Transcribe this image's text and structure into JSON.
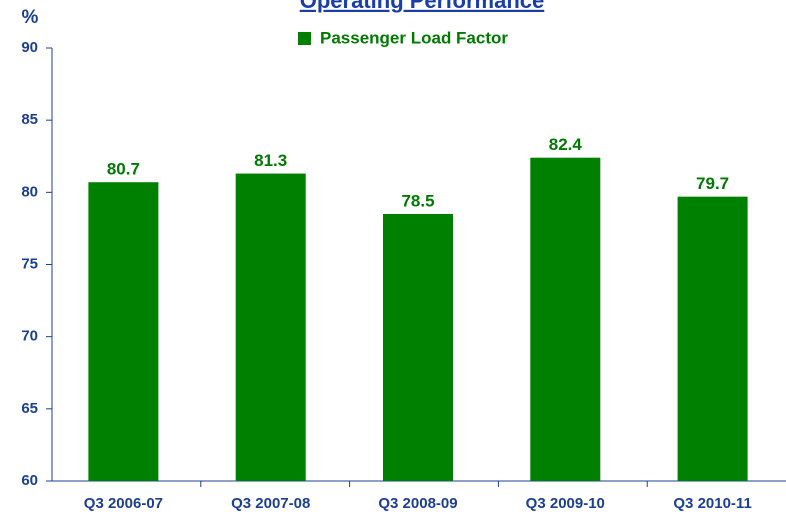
{
  "chart_data": {
    "type": "bar",
    "title": "Operating Performance",
    "y_label": "%",
    "categories": [
      "Q3 2006-07",
      "Q3 2007-08",
      "Q3 2008-09",
      "Q3 2009-10",
      "Q3 2010-11"
    ],
    "series": [
      {
        "name": "Passenger Load Factor",
        "color": "#008000",
        "values": [
          80.7,
          81.3,
          78.5,
          82.4,
          79.7
        ]
      }
    ],
    "ylim": [
      60,
      90
    ],
    "yticks": [
      60,
      65,
      70,
      75,
      80,
      85,
      90
    ]
  }
}
